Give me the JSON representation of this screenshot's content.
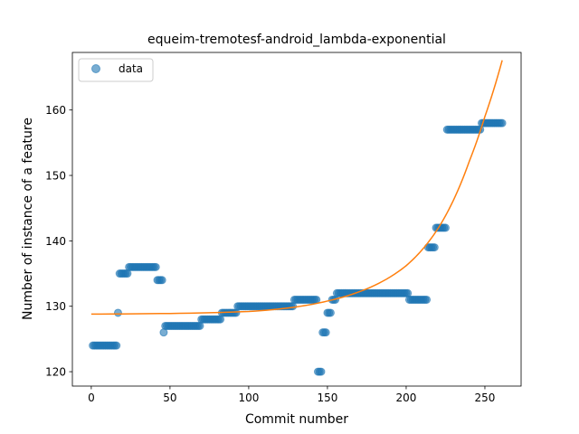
{
  "chart_data": {
    "type": "scatter",
    "title": "equeim-tremotesf-android_lambda-exponential",
    "xlabel": "Commit number",
    "ylabel": "Number of instance of a feature",
    "xlim": [
      -12,
      273
    ],
    "ylim": [
      117.8,
      168.8
    ],
    "xticks": [
      "0",
      "50",
      "100",
      "150",
      "200",
      "250"
    ],
    "yticks": [
      "120",
      "130",
      "140",
      "150",
      "160"
    ],
    "grid": false,
    "legend": {
      "placement": "top-left",
      "entries": [
        "data"
      ]
    },
    "colors": {
      "data": "#1f77b4",
      "fit": "#ff7f0e"
    },
    "series": [
      {
        "name": "data",
        "runs": [
          {
            "x_start": 1,
            "x_end": 16,
            "y": 124
          },
          {
            "x_start": 17,
            "x_end": 17,
            "y": 129
          },
          {
            "x_start": 18,
            "x_end": 23,
            "y": 135
          },
          {
            "x_start": 24,
            "x_end": 41,
            "y": 136
          },
          {
            "x_start": 42,
            "x_end": 45,
            "y": 134
          },
          {
            "x_start": 46,
            "x_end": 46,
            "y": 126
          },
          {
            "x_start": 47,
            "x_end": 69,
            "y": 127
          },
          {
            "x_start": 70,
            "x_end": 82,
            "y": 128
          },
          {
            "x_start": 83,
            "x_end": 92,
            "y": 129
          },
          {
            "x_start": 93,
            "x_end": 128,
            "y": 130
          },
          {
            "x_start": 129,
            "x_end": 143,
            "y": 131
          },
          {
            "x_start": 144,
            "x_end": 146,
            "y": 120
          },
          {
            "x_start": 147,
            "x_end": 149,
            "y": 126
          },
          {
            "x_start": 150,
            "x_end": 152,
            "y": 129
          },
          {
            "x_start": 153,
            "x_end": 155,
            "y": 131
          },
          {
            "x_start": 156,
            "x_end": 201,
            "y": 132
          },
          {
            "x_start": 202,
            "x_end": 213,
            "y": 131
          },
          {
            "x_start": 214,
            "x_end": 218,
            "y": 139
          },
          {
            "x_start": 219,
            "x_end": 225,
            "y": 142
          },
          {
            "x_start": 226,
            "x_end": 247,
            "y": 157
          },
          {
            "x_start": 248,
            "x_end": 261,
            "y": 158
          }
        ]
      },
      {
        "name": "",
        "type": "line",
        "x": [
          0,
          50,
          100,
          130,
          150,
          170,
          190,
          200,
          210,
          220,
          230,
          240,
          250,
          261
        ],
        "y": [
          128.8,
          128.9,
          129.2,
          129.9,
          130.8,
          132.2,
          134.5,
          136.2,
          138.6,
          141.8,
          146.2,
          152.1,
          159.0,
          167.6
        ]
      }
    ]
  }
}
